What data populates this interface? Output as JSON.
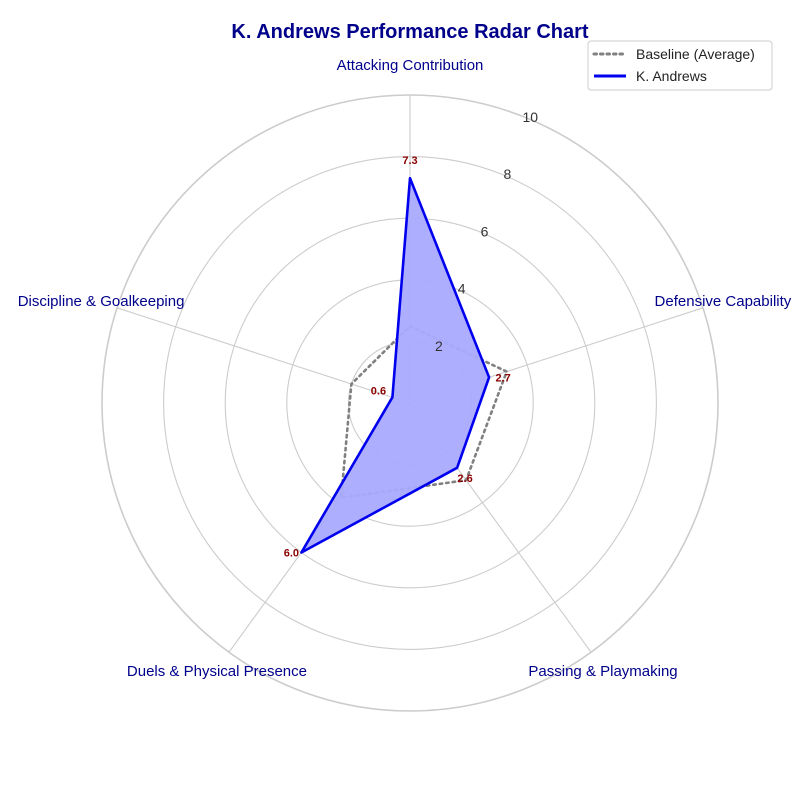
{
  "chart_data": {
    "type": "radar",
    "title": "K. Andrews Performance Radar Chart",
    "axes": [
      "Attacking Contribution",
      "Defensive Capability",
      "Passing & Playmaking",
      "Duels & Physical Presence",
      "Discipline & Goalkeeping"
    ],
    "r_ticks": [
      2,
      4,
      6,
      8,
      10
    ],
    "r_range": [
      0,
      10
    ],
    "grid": true,
    "legend_position": "top-right",
    "series": [
      {
        "name": "Baseline (Average)",
        "values": [
          2.5,
          3.3,
          3.1,
          3.8,
          2.0
        ],
        "style": "dotted",
        "color": "#808080"
      },
      {
        "name": "K. Andrews",
        "values": [
          7.3,
          2.7,
          2.6,
          6.0,
          0.6
        ],
        "style": "solid",
        "color": "#0000ee",
        "fill": "#aaaaff"
      }
    ],
    "data_labels": [
      "7.3",
      "2.7",
      "2.6",
      "6.0",
      "0.6"
    ]
  },
  "colors": {
    "title": "#00008b",
    "axis_label": "#00008b",
    "data_label": "#8b0000",
    "grid": "#cccccc"
  }
}
